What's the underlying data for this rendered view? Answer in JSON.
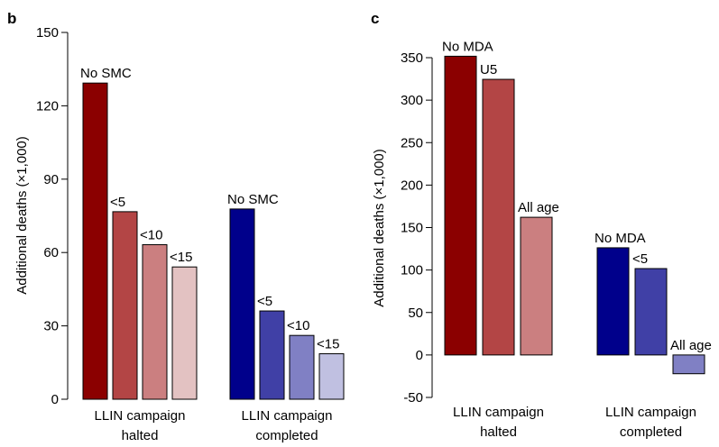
{
  "chart_data": [
    {
      "panel": "b",
      "type": "bar",
      "ylabel": "Additional deaths (×1,000)",
      "ylim": [
        0,
        150
      ],
      "yticks": [
        0,
        30,
        60,
        90,
        120,
        150
      ],
      "grid": false,
      "groups": [
        {
          "label": [
            "LLIN campaign",
            "halted"
          ],
          "bars": [
            {
              "label": "No SMC",
              "value": 129.3,
              "color": "#8b0000"
            },
            {
              "label": "<5",
              "value": 76.7,
              "color": "#b34545"
            },
            {
              "label": "<10",
              "value": 63.2,
              "color": "#cb7f80"
            },
            {
              "label": "<15",
              "value": 54.1,
              "color": "#e3c2c2"
            }
          ]
        },
        {
          "label": [
            "LLIN campaign",
            "completed"
          ],
          "bars": [
            {
              "label": "No SMC",
              "value": 77.8,
              "color": "#00008b"
            },
            {
              "label": "<5",
              "value": 36.1,
              "color": "#4040a6"
            },
            {
              "label": "<10",
              "value": 26.1,
              "color": "#8080c4"
            },
            {
              "label": "<15",
              "value": 18.6,
              "color": "#c0c0e1"
            }
          ]
        }
      ]
    },
    {
      "panel": "c",
      "type": "bar",
      "ylabel": "Additional deaths (×1,000)",
      "ylim": [
        -50,
        350
      ],
      "yticks": [
        -50,
        0,
        50,
        100,
        150,
        200,
        250,
        300,
        350
      ],
      "grid": false,
      "groups": [
        {
          "label": [
            "LLIN campaign",
            "halted"
          ],
          "bars": [
            {
              "label": "No MDA",
              "value": 351.7,
              "color": "#8b0000"
            },
            {
              "label": "U5",
              "value": 324.5,
              "color": "#b34545"
            },
            {
              "label": "All age",
              "value": 162.1,
              "color": "#cb7f80"
            }
          ]
        },
        {
          "label": [
            "LLIN campaign",
            "completed"
          ],
          "bars": [
            {
              "label": "No MDA",
              "value": 126.2,
              "color": "#00008b"
            },
            {
              "label": "<5",
              "value": 101.7,
              "color": "#4040a6"
            },
            {
              "label": "All age",
              "value": -22.1,
              "color": "#8080c4"
            }
          ]
        }
      ]
    }
  ]
}
